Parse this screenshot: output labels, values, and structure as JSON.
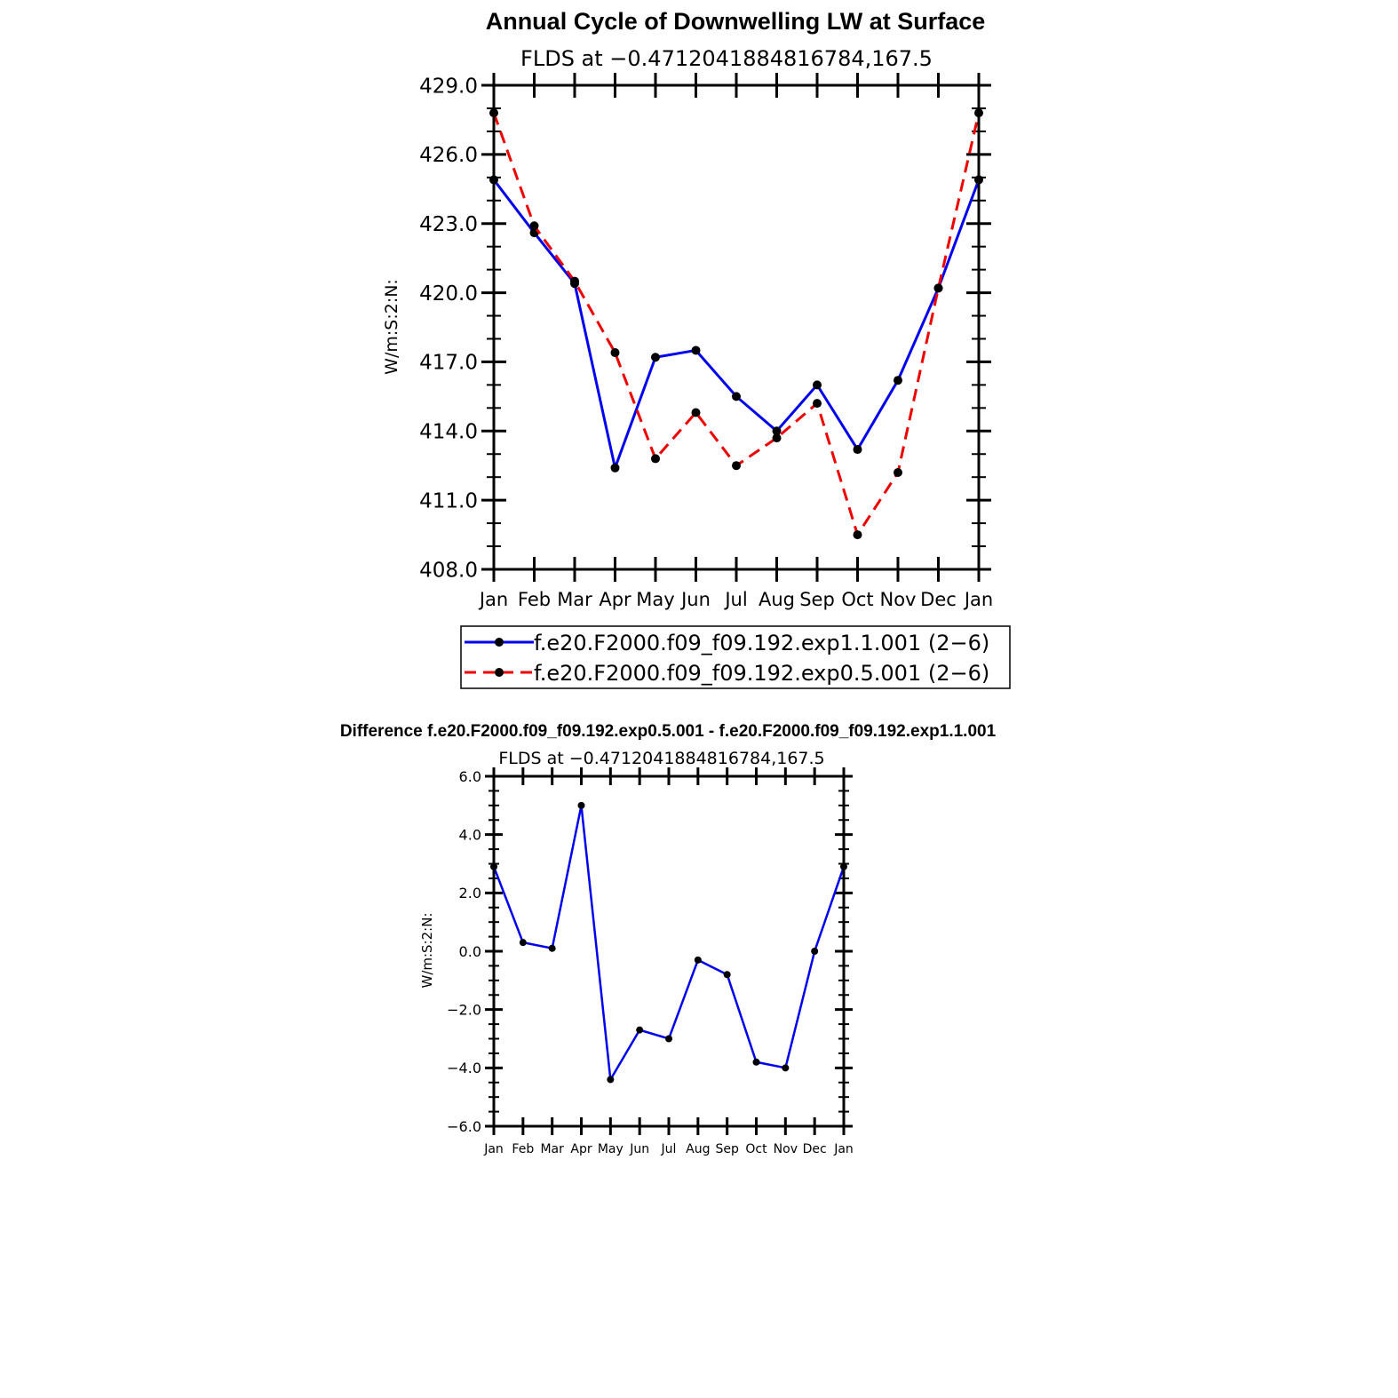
{
  "chart_data": [
    {
      "type": "line",
      "title": "Annual Cycle of Downwelling LW at Surface",
      "subtitle": "FLDS at −0.4712041884816784,167.5",
      "ylabel": "W/m:S:2:N:",
      "xlabel": "",
      "categories": [
        "Jan",
        "Feb",
        "Mar",
        "Apr",
        "May",
        "Jun",
        "Jul",
        "Aug",
        "Sep",
        "Oct",
        "Nov",
        "Dec",
        "Jan"
      ],
      "ylim": [
        408.0,
        429.0
      ],
      "yticks": [
        "408.0",
        "411.0",
        "414.0",
        "417.0",
        "420.0",
        "423.0",
        "426.0",
        "429.0"
      ],
      "grid": false,
      "legend_position": "bottom",
      "series": [
        {
          "name": "f.e20.F2000.f09_f09.192.exp1.1.001 (2−6)",
          "color": "#0000ee",
          "dash": "solid",
          "values": [
            424.9,
            422.6,
            420.4,
            412.4,
            417.2,
            417.5,
            415.5,
            414.0,
            416.0,
            413.2,
            416.2,
            420.2,
            424.9
          ]
        },
        {
          "name": "f.e20.F2000.f09_f09.192.exp0.5.001 (2−6)",
          "color": "#ee0000",
          "dash": "dashed",
          "values": [
            427.8,
            422.9,
            420.5,
            417.4,
            412.8,
            414.8,
            412.5,
            413.7,
            415.2,
            409.5,
            412.2,
            420.2,
            427.8
          ]
        }
      ]
    },
    {
      "type": "line",
      "title": "Difference f.e20.F2000.f09_f09.192.exp0.5.001 - f.e20.F2000.f09_f09.192.exp1.1.001",
      "subtitle": "FLDS at −0.4712041884816784,167.5",
      "ylabel": "W/m:S:2:N:",
      "xlabel": "",
      "categories": [
        "Jan",
        "Feb",
        "Mar",
        "Apr",
        "May",
        "Jun",
        "Jul",
        "Aug",
        "Sep",
        "Oct",
        "Nov",
        "Dec",
        "Jan"
      ],
      "ylim": [
        -6.0,
        6.0
      ],
      "yticks": [
        "−6.0",
        "−4.0",
        "−2.0",
        "0.0",
        "2.0",
        "4.0",
        "6.0"
      ],
      "grid": false,
      "series": [
        {
          "name": "difference",
          "color": "#0000ee",
          "dash": "solid",
          "values": [
            2.9,
            0.3,
            0.1,
            5.0,
            -4.4,
            -2.7,
            -3.0,
            -0.3,
            -0.8,
            -3.8,
            -4.0,
            0.0,
            2.9
          ]
        }
      ]
    }
  ]
}
